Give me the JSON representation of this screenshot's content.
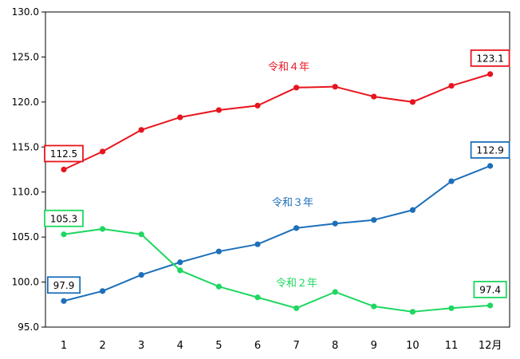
{
  "chart_data": {
    "type": "line",
    "categories": [
      "1",
      "2",
      "3",
      "4",
      "5",
      "6",
      "7",
      "8",
      "9",
      "10",
      "11",
      "12月"
    ],
    "ylim": [
      95.0,
      130.0
    ],
    "yticks": [
      "95.0",
      "100.0",
      "105.0",
      "110.0",
      "115.0",
      "120.0",
      "125.0",
      "130.0"
    ],
    "grid": false,
    "legend": "inline labels",
    "series": [
      {
        "name": "令和４年",
        "color": "#e8141e",
        "values": [
          112.5,
          114.5,
          116.9,
          118.3,
          119.1,
          119.6,
          121.6,
          121.7,
          120.6,
          120.0,
          121.8,
          123.1
        ],
        "callouts": [
          {
            "index": 0,
            "text": "112.5"
          },
          {
            "index": 11,
            "text": "123.1"
          }
        ]
      },
      {
        "name": "令和３年",
        "color": "#1c6fba",
        "values": [
          97.9,
          99.0,
          100.8,
          102.2,
          103.4,
          104.2,
          106.0,
          106.5,
          106.9,
          108.0,
          111.2,
          112.9
        ],
        "callouts": [
          {
            "index": 0,
            "text": "97.9"
          },
          {
            "index": 11,
            "text": "112.9"
          }
        ]
      },
      {
        "name": "令和２年",
        "color": "#1ed760",
        "values": [
          105.3,
          105.9,
          105.3,
          101.3,
          99.5,
          98.3,
          97.1,
          98.9,
          97.3,
          96.7,
          97.1,
          97.4
        ],
        "callouts": [
          {
            "index": 0,
            "text": "105.3"
          },
          {
            "index": 11,
            "text": "97.4"
          }
        ]
      }
    ]
  }
}
